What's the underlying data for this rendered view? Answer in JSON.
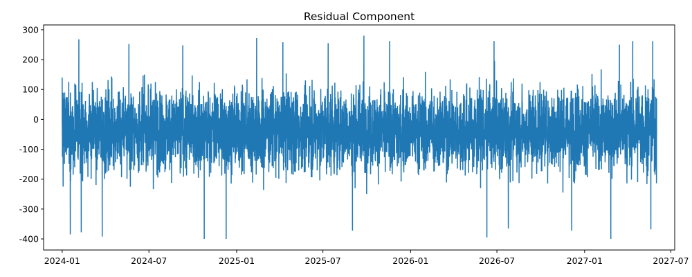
{
  "chart_data": {
    "type": "line",
    "title": "Residual Component",
    "xlabel": "",
    "ylabel": "",
    "x_range": [
      "2023-11-23",
      "2027-07-09"
    ],
    "ylim": [
      -437,
      316
    ],
    "x_ticks": [
      {
        "date": "2024-01-01",
        "label": "2024-01"
      },
      {
        "date": "2024-07-01",
        "label": "2024-07"
      },
      {
        "date": "2025-01-01",
        "label": "2025-01"
      },
      {
        "date": "2025-07-01",
        "label": "2025-07"
      },
      {
        "date": "2026-01-01",
        "label": "2026-01"
      },
      {
        "date": "2026-07-01",
        "label": "2026-07"
      },
      {
        "date": "2027-01-01",
        "label": "2027-01"
      },
      {
        "date": "2027-07-01",
        "label": "2027-07"
      }
    ],
    "y_ticks": [
      300,
      200,
      100,
      0,
      -100,
      -200,
      -300,
      -400
    ],
    "grid": false,
    "color": "#1f77b4",
    "series": [
      {
        "values": [
          {
            "x": "2024-01-01",
            "y": 140
          },
          {
            "x": "2024-01-03",
            "y": -225
          },
          {
            "x": "2024-01-18",
            "y": -385
          },
          {
            "x": "2024-02-05",
            "y": 268
          },
          {
            "x": "2024-02-10",
            "y": -378
          },
          {
            "x": "2024-03-25",
            "y": -392
          },
          {
            "x": "2024-05-20",
            "y": 252
          },
          {
            "x": "2024-09-10",
            "y": 248
          },
          {
            "x": "2024-10-25",
            "y": -400
          },
          {
            "x": "2024-12-10",
            "y": -400
          },
          {
            "x": "2025-02-12",
            "y": 272
          },
          {
            "x": "2025-04-08",
            "y": 258
          },
          {
            "x": "2025-07-12",
            "y": 255
          },
          {
            "x": "2025-09-01",
            "y": -372
          },
          {
            "x": "2025-09-25",
            "y": 280
          },
          {
            "x": "2025-11-18",
            "y": 262
          },
          {
            "x": "2026-06-10",
            "y": -395
          },
          {
            "x": "2026-06-25",
            "y": 262
          },
          {
            "x": "2026-07-25",
            "y": -365
          },
          {
            "x": "2026-12-05",
            "y": -372
          },
          {
            "x": "2027-02-25",
            "y": -400
          },
          {
            "x": "2027-03-15",
            "y": 250
          },
          {
            "x": "2027-04-12",
            "y": 262
          },
          {
            "x": "2027-05-20",
            "y": -368
          },
          {
            "x": "2027-05-24",
            "y": 262
          },
          {
            "x": "2027-06-01",
            "y": 70
          }
        ]
      }
    ]
  }
}
